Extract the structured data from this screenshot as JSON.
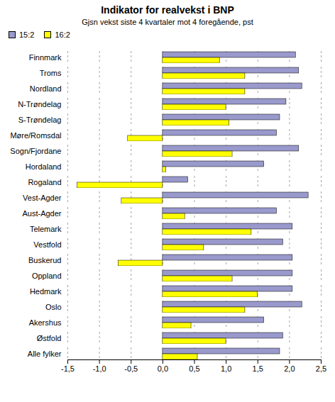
{
  "chart_data": {
    "type": "bar",
    "orientation": "horizontal",
    "title": "Indikator for realvekst i BNP",
    "subtitle": "Gjsn vekst siste 4 kvartaler mot 4 foregående, pst",
    "categories": [
      "Finnmark",
      "Troms",
      "Nordland",
      "N-Trøndelag",
      "S-Trøndelag",
      "Møre/Romsdal",
      "Sogn/Fjordane",
      "Hordaland",
      "Rogaland",
      "Vest-Agder",
      "Aust-Agder",
      "Telemark",
      "Vestfold",
      "Buskerud",
      "Oppland",
      "Hedmark",
      "Oslo",
      "Akershus",
      "Østfold",
      "Alle fylker"
    ],
    "series": [
      {
        "name": "15:2",
        "color": "#9999cc",
        "values": [
          2.1,
          2.15,
          2.2,
          1.95,
          1.85,
          1.8,
          2.15,
          1.6,
          0.4,
          2.3,
          1.8,
          2.05,
          1.9,
          2.05,
          2.05,
          2.05,
          2.2,
          1.6,
          1.9,
          1.85
        ]
      },
      {
        "name": "16:2",
        "color": "#ffff00",
        "values": [
          0.9,
          1.3,
          1.3,
          1.0,
          1.05,
          -0.55,
          1.1,
          0.05,
          -1.35,
          -0.65,
          0.35,
          1.4,
          0.65,
          -0.7,
          1.1,
          1.5,
          1.3,
          0.45,
          1.0,
          0.55
        ]
      }
    ],
    "xlim": [
      -1.5,
      2.5
    ],
    "xticks": [
      {
        "value": -1.5,
        "label": "-1,5"
      },
      {
        "value": -1.0,
        "label": "-1,0"
      },
      {
        "value": -0.5,
        "label": "-0,5"
      },
      {
        "value": 0.0,
        "label": "0,0"
      },
      {
        "value": 0.5,
        "label": "0,5"
      },
      {
        "value": 1.0,
        "label": "1,0"
      },
      {
        "value": 1.5,
        "label": "1,5"
      },
      {
        "value": 2.0,
        "label": "2,0"
      },
      {
        "value": 2.5,
        "label": "2,5"
      }
    ],
    "grid": true,
    "legend": "upper left"
  }
}
